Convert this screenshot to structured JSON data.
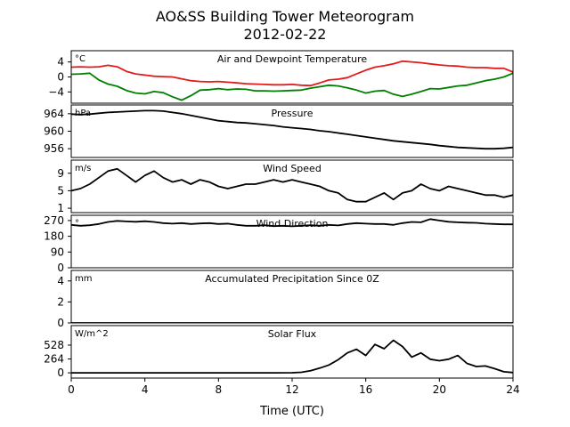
{
  "figure": {
    "title_line1": "AO&SS Building Tower Meteorogram",
    "title_line2": "2012-02-22",
    "xlabel": "Time (UTC)",
    "xlim": [
      0,
      24
    ],
    "xticks": [
      "0",
      "4",
      "8",
      "12",
      "16",
      "20",
      "24"
    ]
  },
  "chart_data": [
    {
      "type": "line",
      "title": "Air and Dewpoint Temperature",
      "unit": "°C",
      "ylim": [
        -7,
        7
      ],
      "yticks": [
        -4,
        0,
        4
      ],
      "x": [
        0,
        0.5,
        1,
        1.5,
        2,
        2.5,
        3,
        3.5,
        4,
        4.5,
        5,
        5.5,
        6,
        6.5,
        7,
        7.5,
        8,
        8.5,
        9,
        9.5,
        10,
        10.5,
        11,
        11.5,
        12,
        12.5,
        13,
        13.5,
        14,
        14.5,
        15,
        15.5,
        16,
        16.5,
        17,
        17.5,
        18,
        18.5,
        19,
        19.5,
        20,
        20.5,
        21,
        21.5,
        22,
        22.5,
        23,
        23.5,
        24
      ],
      "series": [
        {
          "color": "#e41a1c",
          "values": [
            2.6,
            2.7,
            2.6,
            2.7,
            3.1,
            2.7,
            1.5,
            0.8,
            0.5,
            0.2,
            0.1,
            0.0,
            -0.5,
            -1.0,
            -1.2,
            -1.3,
            -1.2,
            -1.4,
            -1.6,
            -1.8,
            -1.9,
            -2.0,
            -2.1,
            -2.1,
            -2.0,
            -2.2,
            -2.3,
            -1.6,
            -0.8,
            -0.6,
            -0.2,
            0.8,
            1.8,
            2.6,
            3.0,
            3.5,
            4.2,
            4.0,
            3.8,
            3.5,
            3.2,
            3.0,
            2.9,
            2.6,
            2.5,
            2.5,
            2.3,
            2.3,
            1.3
          ]
        },
        {
          "color": "#008000",
          "values": [
            0.7,
            0.8,
            1.0,
            -0.8,
            -1.9,
            -2.5,
            -3.6,
            -4.3,
            -4.5,
            -3.9,
            -4.2,
            -5.3,
            -6.2,
            -5.0,
            -3.5,
            -3.4,
            -3.1,
            -3.4,
            -3.2,
            -3.3,
            -3.7,
            -3.7,
            -3.8,
            -3.7,
            -3.6,
            -3.5,
            -3.0,
            -2.6,
            -2.2,
            -2.4,
            -2.9,
            -3.5,
            -4.3,
            -3.8,
            -3.6,
            -4.6,
            -5.2,
            -4.6,
            -3.9,
            -3.1,
            -3.2,
            -2.8,
            -2.4,
            -2.2,
            -1.6,
            -1.0,
            -0.6,
            0.0,
            1.0
          ]
        }
      ]
    },
    {
      "type": "line",
      "title": "Pressure",
      "unit": "hPa",
      "ylim": [
        954,
        966
      ],
      "yticks": [
        956,
        960,
        964
      ],
      "x": [
        0,
        0.5,
        1,
        1.5,
        2,
        2.5,
        3,
        3.5,
        4,
        4.5,
        5,
        5.5,
        6,
        6.5,
        7,
        7.5,
        8,
        8.5,
        9,
        9.5,
        10,
        10.5,
        11,
        11.5,
        12,
        12.5,
        13,
        13.5,
        14,
        14.5,
        15,
        15.5,
        16,
        16.5,
        17,
        17.5,
        18,
        18.5,
        19,
        19.5,
        20,
        20.5,
        21,
        21.5,
        22,
        22.5,
        23,
        23.5,
        24
      ],
      "series": [
        {
          "color": "#000000",
          "values": [
            963.9,
            963.8,
            963.9,
            964.1,
            964.3,
            964.4,
            964.5,
            964.6,
            964.7,
            964.7,
            964.6,
            964.3,
            964.0,
            963.6,
            963.2,
            962.8,
            962.4,
            962.2,
            962.0,
            961.9,
            961.7,
            961.5,
            961.3,
            961.0,
            960.8,
            960.6,
            960.4,
            960.1,
            959.9,
            959.6,
            959.3,
            959.0,
            958.7,
            958.4,
            958.1,
            957.8,
            957.6,
            957.4,
            957.2,
            957.0,
            956.7,
            956.5,
            956.3,
            956.2,
            956.1,
            956.0,
            956.0,
            956.1,
            956.3
          ]
        }
      ]
    },
    {
      "type": "line",
      "title": "Wind Speed",
      "unit": "m/s",
      "ylim": [
        0,
        12
      ],
      "yticks": [
        1,
        5,
        9
      ],
      "x": [
        0,
        0.5,
        1,
        1.5,
        2,
        2.5,
        3,
        3.5,
        4,
        4.5,
        5,
        5.5,
        6,
        6.5,
        7,
        7.5,
        8,
        8.5,
        9,
        9.5,
        10,
        10.5,
        11,
        11.5,
        12,
        12.5,
        13,
        13.5,
        14,
        14.5,
        15,
        15.5,
        16,
        16.5,
        17,
        17.5,
        18,
        18.5,
        19,
        19.5,
        20,
        20.5,
        21,
        21.5,
        22,
        22.5,
        23,
        23.5,
        24
      ],
      "series": [
        {
          "color": "#000000",
          "values": [
            5.0,
            5.5,
            6.5,
            8.0,
            9.5,
            10.0,
            8.5,
            7.0,
            8.5,
            9.5,
            8.0,
            7.0,
            7.5,
            6.5,
            7.5,
            7.0,
            6.0,
            5.5,
            6.0,
            6.5,
            6.5,
            7.0,
            7.5,
            7.0,
            7.5,
            7.0,
            6.5,
            6.0,
            5.0,
            4.5,
            3.0,
            2.5,
            2.5,
            3.5,
            4.5,
            3.0,
            4.5,
            5.0,
            6.5,
            5.5,
            5.0,
            6.0,
            5.5,
            5.0,
            4.5,
            4.0,
            4.0,
            3.5,
            4.0
          ]
        }
      ]
    },
    {
      "type": "line",
      "title": "Wind Direction",
      "unit": "°",
      "ylim": [
        0,
        300
      ],
      "yticks": [
        0,
        90,
        180,
        270
      ],
      "x": [
        0,
        0.5,
        1,
        1.5,
        2,
        2.5,
        3,
        3.5,
        4,
        4.5,
        5,
        5.5,
        6,
        6.5,
        7,
        7.5,
        8,
        8.5,
        9,
        9.5,
        10,
        10.5,
        11,
        11.5,
        12,
        12.5,
        13,
        13.5,
        14,
        14.5,
        15,
        15.5,
        16,
        16.5,
        17,
        17.5,
        18,
        18.5,
        19,
        19.5,
        20,
        20.5,
        21,
        21.5,
        22,
        22.5,
        23,
        23.5,
        24
      ],
      "series": [
        {
          "color": "#000000",
          "values": [
            245,
            240,
            243,
            250,
            262,
            268,
            265,
            263,
            266,
            262,
            255,
            252,
            255,
            250,
            253,
            255,
            250,
            252,
            245,
            240,
            240,
            243,
            238,
            240,
            237,
            240,
            243,
            240,
            245,
            242,
            250,
            255,
            252,
            250,
            250,
            245,
            255,
            262,
            260,
            278,
            270,
            263,
            260,
            258,
            257,
            252,
            250,
            248,
            248
          ]
        }
      ]
    },
    {
      "type": "line",
      "title": "Accumulated Precipitation Since 0Z",
      "unit": "mm",
      "ylim": [
        0,
        5
      ],
      "yticks": [
        0,
        2,
        4
      ],
      "x": [
        0,
        24
      ],
      "series": [
        {
          "color": "#000000",
          "values": [
            0,
            0
          ]
        }
      ]
    },
    {
      "type": "line",
      "title": "Solar Flux",
      "unit": "W/m^2",
      "ylim": [
        -100,
        900
      ],
      "yticks": [
        0,
        264,
        528
      ],
      "x": [
        0,
        1,
        2,
        3,
        4,
        5,
        6,
        7,
        8,
        9,
        10,
        11,
        12,
        12.5,
        13,
        13.5,
        14,
        14.5,
        15,
        15.5,
        16,
        16.5,
        17,
        17.5,
        18,
        18.5,
        19,
        19.5,
        20,
        20.5,
        21,
        21.5,
        22,
        22.5,
        23,
        23.5,
        24
      ],
      "series": [
        {
          "color": "#000000",
          "values": [
            0,
            0,
            0,
            0,
            0,
            0,
            0,
            0,
            0,
            0,
            0,
            0,
            2,
            10,
            40,
            90,
            150,
            250,
            380,
            450,
            330,
            540,
            460,
            620,
            500,
            300,
            380,
            260,
            230,
            260,
            330,
            180,
            120,
            130,
            80,
            20,
            5
          ]
        }
      ]
    }
  ]
}
